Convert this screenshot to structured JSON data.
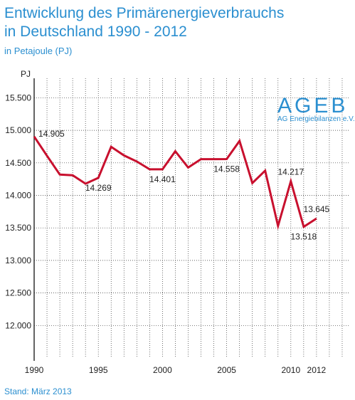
{
  "header": {
    "title_line1": "Entwicklung des Primärenergieverbrauchs",
    "title_line2": "in Deutschland 1990 - 2012",
    "subtitle": "in Petajoule (PJ)"
  },
  "footer": {
    "source": "Stand: März 2013"
  },
  "logo": {
    "name": "AGEB",
    "subtitle": "AG Energiebilanzen e.V."
  },
  "colors": {
    "series": "#c8102e",
    "accent": "#2b8fd0",
    "grid": "#333333"
  },
  "chart_data": {
    "type": "line",
    "title": "Entwicklung des Primärenergieverbrauchs in Deutschland 1990 - 2012",
    "ylabel": "PJ",
    "ylim": [
      11500,
      15800
    ],
    "xlim": [
      1990,
      2014.5
    ],
    "grid": true,
    "yticks": [
      {
        "value": 12000,
        "label": "12.000"
      },
      {
        "value": 12500,
        "label": "12.500"
      },
      {
        "value": 13000,
        "label": "13.000"
      },
      {
        "value": 13500,
        "label": "13.500"
      },
      {
        "value": 14000,
        "label": "14.000"
      },
      {
        "value": 14500,
        "label": "14.500"
      },
      {
        "value": 15000,
        "label": "15.000"
      },
      {
        "value": 15500,
        "label": "15.500"
      }
    ],
    "xticks": [
      {
        "value": 1990,
        "label": "1990"
      },
      {
        "value": 1995,
        "label": "1995"
      },
      {
        "value": 2000,
        "label": "2000"
      },
      {
        "value": 2005,
        "label": "2005"
      },
      {
        "value": 2010,
        "label": "2010"
      },
      {
        "value": 2012,
        "label": "2012"
      }
    ],
    "series": [
      {
        "x": [
          1990,
          1991,
          1992,
          1993,
          1994,
          1995,
          1996,
          1997,
          1998,
          1999,
          2000,
          2001,
          2002,
          2003,
          2004,
          2005,
          2006,
          2007,
          2008,
          2009,
          2010,
          2011,
          2012
        ],
        "values": [
          14905,
          14610,
          14320,
          14310,
          14180,
          14269,
          14746,
          14614,
          14521,
          14401,
          14401,
          14679,
          14428,
          14557,
          14557,
          14558,
          14837,
          14189,
          14380,
          13531,
          14217,
          13518,
          13645
        ]
      }
    ],
    "annotations": [
      {
        "x": 1990,
        "y": 14905,
        "label": "14.905",
        "pos": "above-right"
      },
      {
        "x": 1995,
        "y": 14269,
        "label": "14.269",
        "pos": "below"
      },
      {
        "x": 2000,
        "y": 14401,
        "label": "14.401",
        "pos": "below"
      },
      {
        "x": 2005,
        "y": 14558,
        "label": "14.558",
        "pos": "below"
      },
      {
        "x": 2010,
        "y": 14217,
        "label": "14.217",
        "pos": "above"
      },
      {
        "x": 2011,
        "y": 13518,
        "label": "13.518",
        "pos": "below"
      },
      {
        "x": 2012,
        "y": 13645,
        "label": "13.645",
        "pos": "above"
      }
    ]
  }
}
